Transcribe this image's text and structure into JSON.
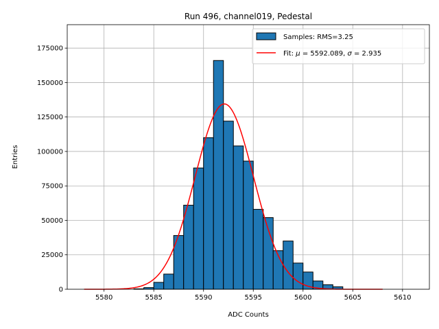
{
  "chart_data": {
    "type": "bar",
    "title": "Run 496, channel019, Pedestal",
    "xlabel": "ADC Counts",
    "ylabel": "Entries",
    "xlim": [
      5576.3,
      5612.7
    ],
    "ylim": [
      0,
      192000
    ],
    "xticks": [
      5580,
      5585,
      5590,
      5595,
      5600,
      5605,
      5610
    ],
    "yticks": [
      0,
      25000,
      50000,
      75000,
      100000,
      125000,
      150000,
      175000
    ],
    "grid": true,
    "legend_position": "top-right",
    "histogram": {
      "name": "Samples: RMS=3.25",
      "color": "#1f77b4",
      "edge_color": "#000000",
      "bin_width": 1,
      "bin_left_edges": [
        5583,
        5584,
        5585,
        5586,
        5587,
        5588,
        5589,
        5590,
        5591,
        5592,
        5593,
        5594,
        5595,
        5596,
        5597,
        5598,
        5599,
        5600,
        5601,
        5602,
        5603
      ],
      "values": [
        300,
        1200,
        5000,
        11000,
        39000,
        61000,
        88000,
        110000,
        166000,
        122000,
        104000,
        93000,
        58000,
        52000,
        28000,
        35000,
        19000,
        12500,
        6000,
        3300,
        1800
      ]
    },
    "fit": {
      "name": "Fit: μ = 5592.089, σ = 2.935",
      "label_prefix": "Fit: ",
      "mu_symbol": "μ",
      "mu_text": " = 5592.089, ",
      "sigma_symbol": "σ",
      "sigma_text": " = 2.935",
      "color": "#ff0000",
      "mu": 5592.089,
      "sigma": 2.935,
      "amplitude": 134500,
      "x_range": [
        5578,
        5608
      ]
    }
  }
}
